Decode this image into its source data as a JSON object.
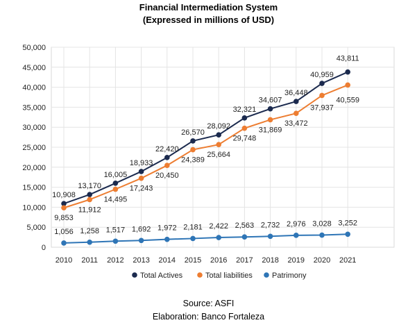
{
  "chart_data": {
    "type": "line",
    "title": "Financial Intermediation System",
    "subtitle": "(Expressed in millions of USD)",
    "categories": [
      "2010",
      "2011",
      "2012",
      "2013",
      "2014",
      "2015",
      "2016",
      "2017",
      "2018",
      "2019",
      "2020",
      "2021"
    ],
    "yticks": [
      "0",
      "5,000",
      "10,000",
      "15,000",
      "20,000",
      "25,000",
      "30,000",
      "35,000",
      "40,000",
      "45,000",
      "50,000"
    ],
    "ylim": [
      0,
      50000
    ],
    "grid": true,
    "legend_position": "bottom",
    "series": [
      {
        "name": "Total Actives",
        "color": "#1b2a4e",
        "values": [
          10908,
          13170,
          16005,
          18933,
          22420,
          26570,
          28092,
          32321,
          34607,
          36448,
          40959,
          43811
        ],
        "labels": [
          "10,908",
          "13,170",
          "16,005",
          "18,933",
          "22,420",
          "26,570",
          "28,092",
          "32,321",
          "34,607",
          "36,448",
          "40,959",
          "43,811"
        ]
      },
      {
        "name": "Total liabilities",
        "color": "#ed7d31",
        "values": [
          9853,
          11912,
          14495,
          17243,
          20450,
          24389,
          25664,
          29748,
          31869,
          33472,
          37937,
          40559
        ],
        "labels": [
          "9,853",
          "11,912",
          "14,495",
          "17,243",
          "20,450",
          "24,389",
          "25,664",
          "29,748",
          "31,869",
          "33,472",
          "37,937",
          "40,559"
        ]
      },
      {
        "name": "Patrimony",
        "color": "#2e75b6",
        "values": [
          1056,
          1258,
          1517,
          1692,
          1972,
          2181,
          2422,
          2563,
          2732,
          2976,
          3028,
          3252
        ],
        "labels": [
          "1,056",
          "1,258",
          "1,517",
          "1,692",
          "1,972",
          "2,181",
          "2,422",
          "2,563",
          "2,732",
          "2,976",
          "3,028",
          "3,252"
        ]
      }
    ]
  },
  "footer": {
    "source": "Source: ASFI",
    "elaboration": "Elaboration: Banco Fortaleza"
  }
}
